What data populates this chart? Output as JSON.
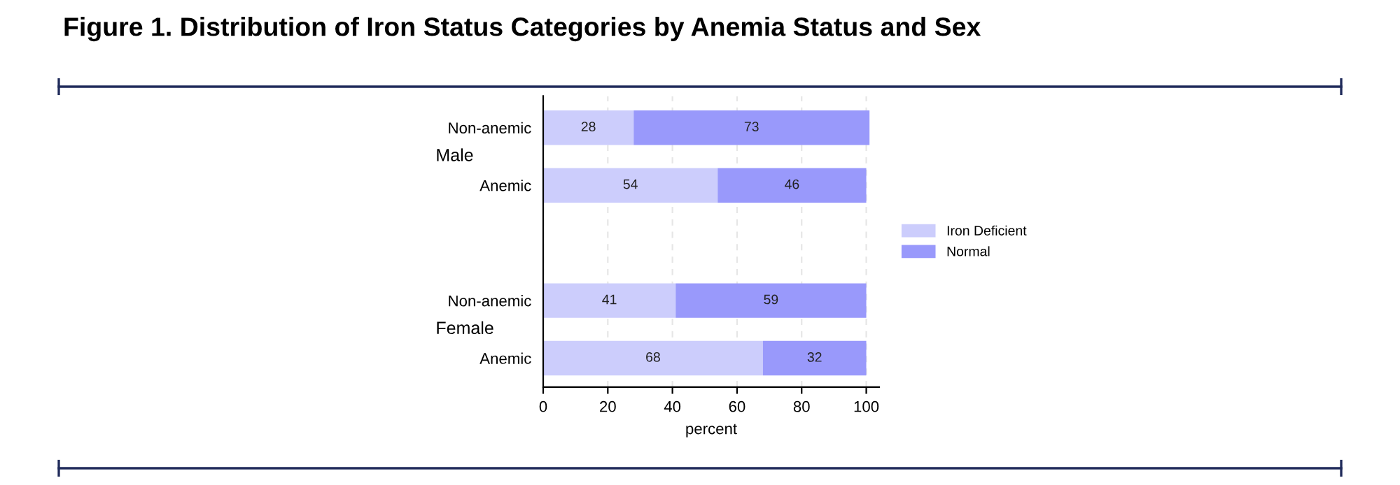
{
  "chart_data": {
    "type": "bar",
    "orientation": "horizontal",
    "stacked": true,
    "title": "Figure 1. Distribution of Iron Status Categories by Anemia Status and Sex",
    "categories": [
      "Non-anemic",
      "Anemic",
      null,
      "Non-anemic",
      "Anemic"
    ],
    "series": [
      {
        "name": "Iron Deficient",
        "color": "#cccdfc",
        "values": [
          28,
          54,
          null,
          41,
          68
        ]
      },
      {
        "name": "Normal",
        "color": "#9999fb",
        "values": [
          73,
          46,
          null,
          59,
          32
        ]
      }
    ],
    "xlabel": "percent",
    "xlim": [
      0,
      104
    ],
    "xticks": [
      0,
      20,
      40,
      60,
      80,
      100
    ],
    "grid": "x",
    "legend": "right",
    "data_labels": true,
    "annotations": [
      "Male",
      "Female"
    ]
  }
}
